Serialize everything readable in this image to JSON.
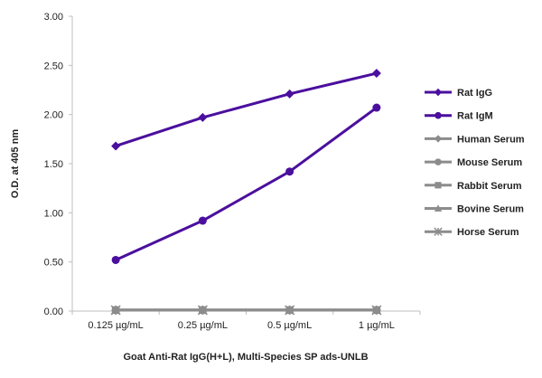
{
  "chart_data": {
    "type": "line",
    "categories": [
      "0.125 µg/mL",
      "0.25 µg/mL",
      "0.5 µg/mL",
      "1 µg/mL"
    ],
    "y_tick_labels": [
      "0.00",
      "0.50",
      "1.00",
      "1.50",
      "2.00",
      "2.50",
      "3.00"
    ],
    "ylim": [
      0,
      3
    ],
    "grid": false,
    "legend_position": "right",
    "xlabel": "Goat Anti-Rat IgG(H+L), Multi-Species SP ads-UNLB",
    "ylabel": "O.D. at 405 nm",
    "series": [
      {
        "name": "Rat IgG",
        "values": [
          1.68,
          1.97,
          2.21,
          2.42
        ],
        "color": "#4b0f9e",
        "marker": "diamond"
      },
      {
        "name": "Rat IgM",
        "values": [
          0.52,
          0.92,
          1.42,
          2.07
        ],
        "color": "#4b0f9e",
        "marker": "circle"
      },
      {
        "name": "Human Serum",
        "values": [
          0.01,
          0.01,
          0.01,
          0.01
        ],
        "color": "#8c8c8c",
        "marker": "diamond"
      },
      {
        "name": "Mouse Serum",
        "values": [
          0.01,
          0.01,
          0.01,
          0.01
        ],
        "color": "#8c8c8c",
        "marker": "circle"
      },
      {
        "name": "Rabbit Serum",
        "values": [
          0.01,
          0.01,
          0.01,
          0.01
        ],
        "color": "#8c8c8c",
        "marker": "square"
      },
      {
        "name": "Bovine Serum",
        "values": [
          0.01,
          0.01,
          0.01,
          0.01
        ],
        "color": "#8c8c8c",
        "marker": "triangle"
      },
      {
        "name": "Horse Serum",
        "values": [
          0.01,
          0.01,
          0.01,
          0.01
        ],
        "color": "#8c8c8c",
        "marker": "star"
      }
    ]
  }
}
